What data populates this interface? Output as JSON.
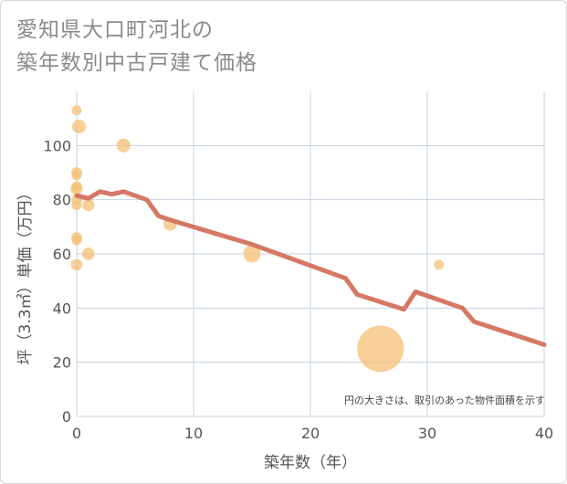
{
  "title_lines": [
    "愛知県大口町河北の",
    "築年数別中古戸建て価格"
  ],
  "chart_data": {
    "type": "scatter",
    "xlabel": "築年数（年）",
    "ylabel": "坪（3.3㎡）単価（万円）",
    "xlim": [
      0,
      40
    ],
    "ylim": [
      0,
      120
    ],
    "x_ticks": [
      "0",
      "10",
      "20",
      "30",
      "40"
    ],
    "y_ticks": [
      "0",
      "20",
      "40",
      "60",
      "80",
      "100"
    ],
    "grid": true,
    "note": "円の大きさは、取引のあった物件面積を示す",
    "colors": {
      "bubble": "#f5c27a",
      "line": "#d4715c",
      "grid": "#c5d3e0"
    },
    "bubbles": [
      {
        "x": 0,
        "y": 113,
        "size": 1
      },
      {
        "x": 0.2,
        "y": 107,
        "size": 2
      },
      {
        "x": 0,
        "y": 90,
        "size": 1.2
      },
      {
        "x": 0,
        "y": 89,
        "size": 1
      },
      {
        "x": 0,
        "y": 85,
        "size": 1
      },
      {
        "x": 0,
        "y": 84,
        "size": 1.5
      },
      {
        "x": 0,
        "y": 80,
        "size": 1.2
      },
      {
        "x": 0,
        "y": 78,
        "size": 1
      },
      {
        "x": 1,
        "y": 78,
        "size": 1.5
      },
      {
        "x": 0,
        "y": 66,
        "size": 1.2
      },
      {
        "x": 0,
        "y": 65,
        "size": 1
      },
      {
        "x": 1,
        "y": 60,
        "size": 1.6
      },
      {
        "x": 0,
        "y": 56,
        "size": 1.4
      },
      {
        "x": 4,
        "y": 100,
        "size": 2
      },
      {
        "x": 8,
        "y": 71,
        "size": 1.8
      },
      {
        "x": 15,
        "y": 60,
        "size": 3.2
      },
      {
        "x": 26,
        "y": 25,
        "size": 25
      },
      {
        "x": 31,
        "y": 56,
        "size": 1
      }
    ],
    "trend": {
      "x": [
        0,
        1,
        2,
        3,
        4,
        5,
        6,
        7,
        8,
        15,
        23,
        24,
        28,
        29,
        33,
        34,
        40
      ],
      "y": [
        81.5,
        80.5,
        83,
        82,
        83,
        81.5,
        80,
        74,
        72.5,
        63.5,
        51,
        45,
        39.5,
        46,
        40,
        35,
        26.5
      ]
    }
  }
}
